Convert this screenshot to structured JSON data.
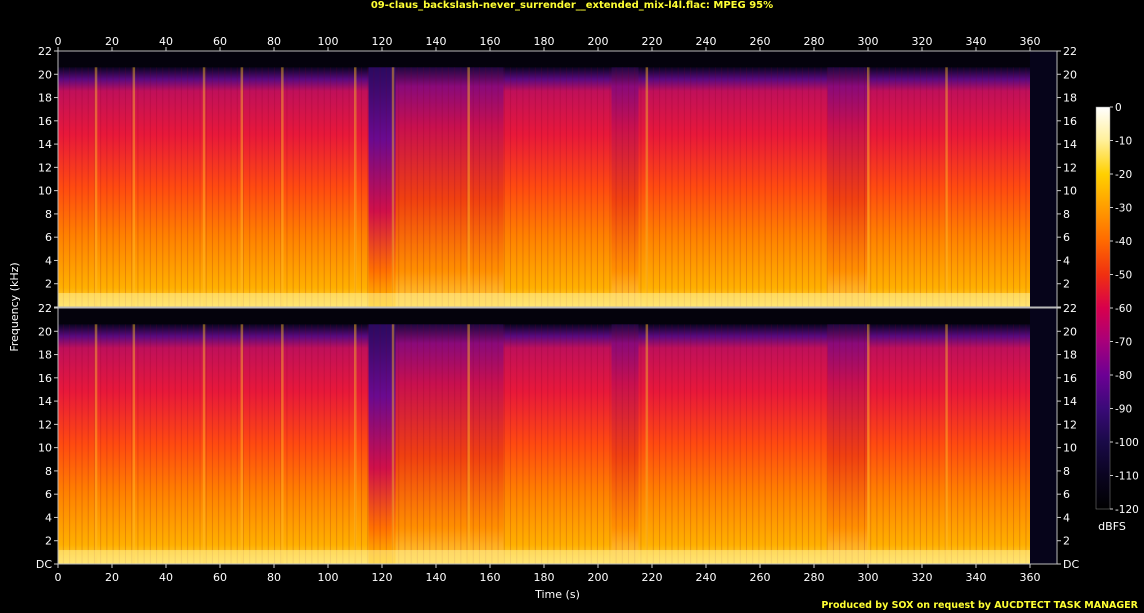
{
  "title": "09-claus_backslash-never_surrender__extended_mix-l4l.flac: MPEG 95%",
  "footer": "Produced by SOX on request by AUCDTECT TASK MANAGER",
  "chart_data": {
    "type": "heatmap",
    "title": "09-claus_backslash-never_surrender__extended_mix-l4l.flac: MPEG 95%",
    "xlabel": "Time (s)",
    "ylabel": "Frequency (kHz)",
    "xlim": [
      0,
      370
    ],
    "x_ticks": [
      "0",
      "20",
      "40",
      "60",
      "80",
      "100",
      "120",
      "140",
      "160",
      "180",
      "200",
      "220",
      "240",
      "260",
      "280",
      "300",
      "320",
      "340",
      "360"
    ],
    "x_tick_values": [
      0,
      20,
      40,
      60,
      80,
      100,
      120,
      140,
      160,
      180,
      200,
      220,
      240,
      260,
      280,
      300,
      320,
      340,
      360
    ],
    "ylim_khz": [
      0,
      22
    ],
    "y_ticks": [
      "DC",
      "2",
      "4",
      "6",
      "8",
      "10",
      "12",
      "14",
      "16",
      "18",
      "20",
      "22"
    ],
    "y_tick_values": [
      0,
      2,
      4,
      6,
      8,
      10,
      12,
      14,
      16,
      18,
      20,
      22
    ],
    "channels": 2,
    "audio_end_s": 360,
    "colorbar": {
      "label": "dBFS",
      "ticks": [
        "0",
        "-10",
        "-20",
        "-30",
        "-40",
        "-50",
        "-60",
        "-70",
        "-80",
        "-90",
        "-100",
        "-110",
        "-120"
      ],
      "tick_values": [
        0,
        -10,
        -20,
        -30,
        -40,
        -50,
        -60,
        -70,
        -80,
        -90,
        -100,
        -110,
        -120
      ],
      "colors": [
        "#ffffff",
        "#fff09a",
        "#ffd000",
        "#ff9d00",
        "#ff6a00",
        "#f03010",
        "#d8004c",
        "#a8007a",
        "#6c0094",
        "#3a0a78",
        "#1a0a48",
        "#0a0420",
        "#000000"
      ]
    },
    "segments_s": [
      {
        "start": 0,
        "end": 115,
        "level": "loud"
      },
      {
        "start": 115,
        "end": 125,
        "level": "quiet"
      },
      {
        "start": 125,
        "end": 165,
        "level": "medium"
      },
      {
        "start": 165,
        "end": 205,
        "level": "loud"
      },
      {
        "start": 205,
        "end": 215,
        "level": "medium"
      },
      {
        "start": 215,
        "end": 285,
        "level": "loud"
      },
      {
        "start": 285,
        "end": 300,
        "level": "medium"
      },
      {
        "start": 300,
        "end": 360,
        "level": "loud"
      }
    ]
  }
}
